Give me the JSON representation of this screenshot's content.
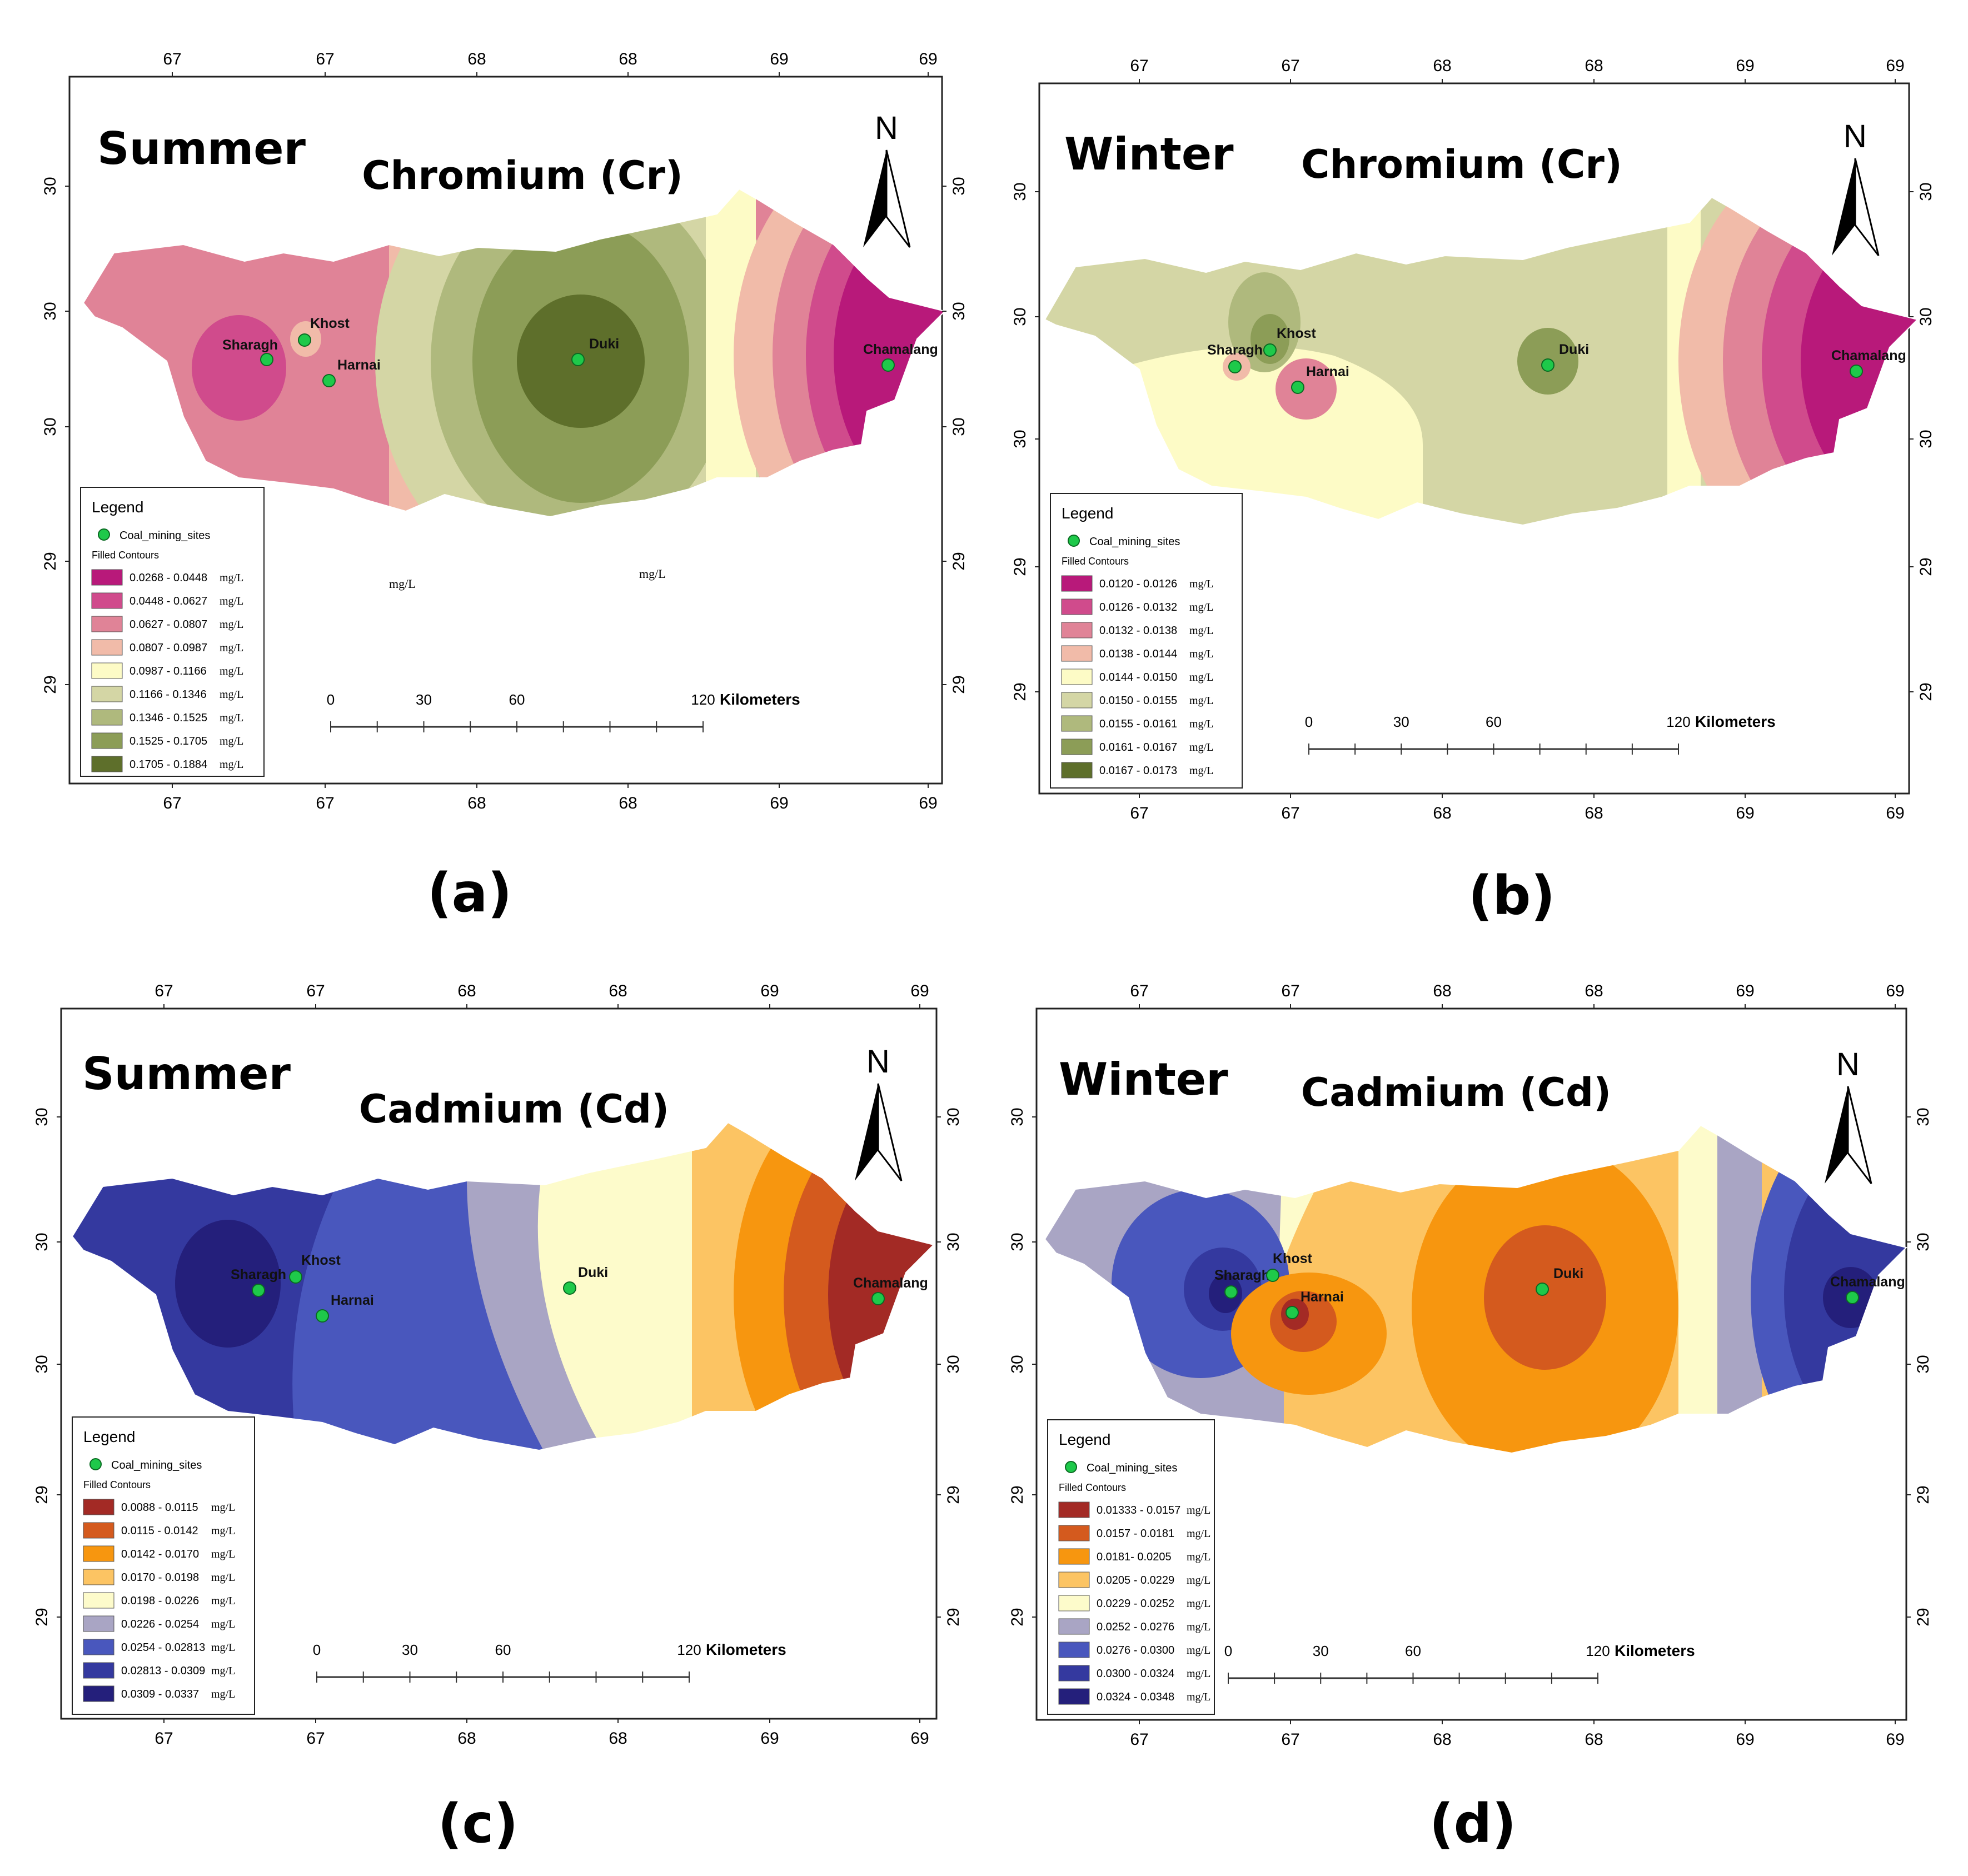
{
  "common": {
    "north_label": "N",
    "legend_title": "Legend",
    "site_layer_label": "Coal_mining_sites",
    "contours_label": "Filled Contours",
    "scale": {
      "ticks": [
        "0",
        "30",
        "60",
        "120"
      ],
      "unit": "Kilometers"
    },
    "x_tick_labels": [
      "67",
      "67",
      "68",
      "68",
      "69",
      "69"
    ],
    "y_tick_labels": [
      "30",
      "30",
      "30",
      "29",
      "29"
    ]
  },
  "panels": [
    {
      "id": "a",
      "label": "(a)",
      "season": "Summer",
      "element": "Chromium (Cr)",
      "sites": [
        {
          "name": "Sharagh"
        },
        {
          "name": "Khost"
        },
        {
          "name": "Harnai"
        },
        {
          "name": "Duki"
        },
        {
          "name": "Chamalang"
        }
      ],
      "stray_labels": [
        "mg/L",
        "mg/L"
      ],
      "legend": [
        {
          "range": "0.0268 - 0.0448",
          "unit": "mg/L",
          "color": "#b8197a"
        },
        {
          "range": "0.0448 - 0.0627",
          "unit": "mg/L",
          "color": "#d04b8c"
        },
        {
          "range": "0.0627 - 0.0807",
          "unit": "mg/L",
          "color": "#e08397"
        },
        {
          "range": "0.0807 - 0.0987",
          "unit": "mg/L",
          "color": "#f1bba9"
        },
        {
          "range": "0.0987 - 0.1166",
          "unit": "mg/L",
          "color": "#fdfbc6"
        },
        {
          "range": "0.1166 - 0.1346",
          "unit": "mg/L",
          "color": "#d4d6a5"
        },
        {
          "range": "0.1346 - 0.1525",
          "unit": "mg/L",
          "color": "#afb97d"
        },
        {
          "range": "0.1525 - 0.1705",
          "unit": "mg/L",
          "color": "#8c9d57"
        },
        {
          "range": "0.1705 - 0.1884",
          "unit": "mg/L",
          "color": "#5e6f2b"
        }
      ]
    },
    {
      "id": "b",
      "label": "(b)",
      "season": "Winter",
      "element": "Chromium (Cr)",
      "sites": [
        {
          "name": "Sharagh"
        },
        {
          "name": "Khost"
        },
        {
          "name": "Harnai"
        },
        {
          "name": "Duki"
        },
        {
          "name": "Chamalang"
        }
      ],
      "stray_labels": [],
      "legend": [
        {
          "range": "0.0120 - 0.0126",
          "unit": "mg/L",
          "color": "#b8197a"
        },
        {
          "range": "0.0126 - 0.0132",
          "unit": "mg/L",
          "color": "#d04b8c"
        },
        {
          "range": "0.0132 - 0.0138",
          "unit": "mg/L",
          "color": "#e08397"
        },
        {
          "range": "0.0138 - 0.0144",
          "unit": "mg/L",
          "color": "#f1bba9"
        },
        {
          "range": "0.0144 - 0.0150",
          "unit": "mg/L",
          "color": "#fdfbc6"
        },
        {
          "range": "0.0150 - 0.0155",
          "unit": "mg/L",
          "color": "#d4d6a5"
        },
        {
          "range": "0.0155 - 0.0161",
          "unit": "mg/L",
          "color": "#afb97d"
        },
        {
          "range": "0.0161 - 0.0167",
          "unit": "mg/L",
          "color": "#8c9d57"
        },
        {
          "range": "0.0167 - 0.0173",
          "unit": "mg/L",
          "color": "#5e6f2b"
        }
      ]
    },
    {
      "id": "c",
      "label": "(c)",
      "season": "Summer",
      "element": "Cadmium (Cd)",
      "sites": [
        {
          "name": "Sharagh"
        },
        {
          "name": "Khost"
        },
        {
          "name": "Harnai"
        },
        {
          "name": "Duki"
        },
        {
          "name": "Chamalang"
        }
      ],
      "stray_labels": [],
      "legend": [
        {
          "range": "0.0088 - 0.0115",
          "unit": "mg/L",
          "color": "#a32a25"
        },
        {
          "range": "0.0115 - 0.0142",
          "unit": "mg/L",
          "color": "#d45a1e"
        },
        {
          "range": "0.0142 - 0.0170",
          "unit": "mg/L",
          "color": "#f7960f"
        },
        {
          "range": "0.0170 - 0.0198",
          "unit": "mg/L",
          "color": "#fcc463"
        },
        {
          "range": "0.0198 - 0.0226",
          "unit": "mg/L",
          "color": "#fdfbcb"
        },
        {
          "range": "0.0226 - 0.0254",
          "unit": "mg/L",
          "color": "#a9a5c4"
        },
        {
          "range": "0.0254 - 0.02813",
          "unit": "mg/L",
          "color": "#4957bd"
        },
        {
          "range": "0.02813 - 0.0309",
          "unit": "mg/L",
          "color": "#34399f"
        },
        {
          "range": "0.0309 - 0.0337",
          "unit": "mg/L",
          "color": "#241f7b"
        }
      ]
    },
    {
      "id": "d",
      "label": "(d)",
      "season": "Winter",
      "element": "Cadmium (Cd)",
      "sites": [
        {
          "name": "Sharagh"
        },
        {
          "name": "Khost"
        },
        {
          "name": "Harnai"
        },
        {
          "name": "Duki"
        },
        {
          "name": "Chamalang"
        }
      ],
      "stray_labels": [],
      "legend": [
        {
          "range": "0.01333 - 0.0157",
          "unit": "mg/L",
          "color": "#a32a25"
        },
        {
          "range": "0.0157 - 0.0181",
          "unit": "mg/L",
          "color": "#d45a1e"
        },
        {
          "range": "0.0181- 0.0205",
          "unit": "mg/L",
          "color": "#f7960f"
        },
        {
          "range": "0.0205 - 0.0229",
          "unit": "mg/L",
          "color": "#fcc463"
        },
        {
          "range": "0.0229 - 0.0252",
          "unit": "mg/L",
          "color": "#fdfbcb"
        },
        {
          "range": "0.0252 - 0.0276",
          "unit": "mg/L",
          "color": "#a9a5c4"
        },
        {
          "range": "0.0276 - 0.0300",
          "unit": "mg/L",
          "color": "#4957bd"
        },
        {
          "range": "0.0300 - 0.0324",
          "unit": "mg/L",
          "color": "#34399f"
        },
        {
          "range": "0.0324 - 0.0348",
          "unit": "mg/L",
          "color": "#241f7b"
        }
      ]
    }
  ]
}
